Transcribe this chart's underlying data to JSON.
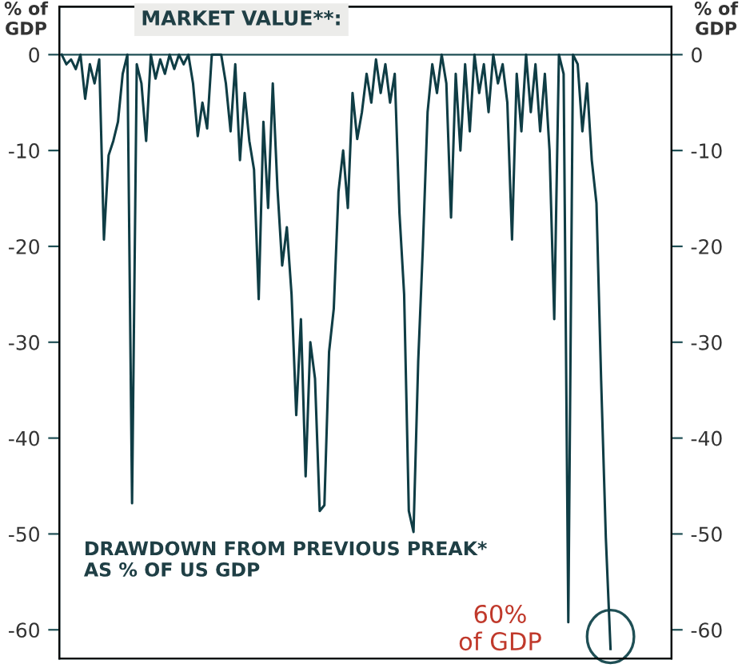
{
  "chart_data": {
    "type": "line",
    "ylabel": "% of GDP",
    "y2label": "% of GDP",
    "annotations": [
      "MARKET VALUE**:",
      "DRAWDOWN FROM PREVIOUS PREAK*\nAS % OF US GDP",
      "60%\nof GDP"
    ],
    "categories": [
      null,
      null,
      null,
      null,
      null,
      null,
      null,
      null,
      null,
      null,
      null,
      null,
      null,
      null,
      null,
      null,
      null,
      null,
      null,
      null,
      null,
      null,
      null,
      null,
      null,
      null,
      null,
      null,
      null,
      null,
      null,
      null,
      null,
      null,
      null,
      null,
      null,
      null,
      null,
      null,
      null,
      null,
      null,
      null,
      null,
      null,
      null,
      null,
      null,
      null,
      null,
      null,
      null,
      null,
      null,
      null,
      null,
      null,
      null,
      null,
      null,
      null,
      null,
      null,
      null,
      null,
      null,
      null,
      null,
      null,
      null,
      null,
      null,
      null,
      null,
      null,
      null,
      null,
      null,
      null,
      null,
      null,
      null,
      null,
      null,
      null,
      null,
      null,
      null,
      null,
      null,
      null,
      null,
      null,
      null,
      null,
      null,
      null,
      null,
      null,
      null,
      null,
      null,
      null,
      null,
      null,
      null,
      null,
      null,
      null,
      null,
      null,
      null,
      null,
      null,
      null,
      null,
      null
    ],
    "series": [
      {
        "color": "#0f3d45",
        "values": [
          0,
          -1,
          -0.5,
          -1.5,
          0,
          -4.6,
          -1,
          -3,
          -0.5,
          -19.3,
          -10.5,
          -9,
          -7,
          -2,
          0,
          -46.8,
          -1,
          -3,
          -9,
          0,
          -2.5,
          -0.5,
          -2,
          0,
          -1.5,
          0,
          -1,
          0,
          -3,
          -8.5,
          -5,
          -7.7,
          0,
          0,
          0,
          -3,
          -8,
          -1,
          -11,
          -4,
          -9,
          -12,
          -25.5,
          -7,
          -16,
          -3,
          -14,
          -22,
          -18,
          -25,
          -37.6,
          -27.6,
          -44,
          -30,
          -33.8,
          -47.6,
          -47,
          -31,
          -26.5,
          -14.3,
          -10,
          -16,
          -4,
          -8.8,
          -6,
          -2,
          -5,
          -0.5,
          -4,
          -1,
          -5,
          -2,
          -16.5,
          -25,
          -47.6,
          -49.8,
          -32,
          -20,
          -6,
          -1,
          -4,
          0,
          -3,
          -17,
          -2,
          -10,
          -1,
          -8,
          0,
          -4,
          -1,
          -6,
          0,
          -3,
          -1,
          -5,
          -19.3,
          -2,
          -8,
          0,
          -6,
          -1,
          -8,
          -2,
          -10,
          -27.6,
          0,
          -2,
          -59.2,
          0,
          -1,
          -8,
          -3,
          -11,
          -15.5,
          -34,
          -50.4,
          -62
        ]
      }
    ],
    "ylim": [
      -63,
      5
    ],
    "yticks": [
      0,
      -10,
      -20,
      -30,
      -40,
      -50,
      -60
    ],
    "y2lim": [
      -63,
      5
    ],
    "y2ticks": [
      0,
      -10,
      -20,
      -30,
      -40,
      -50,
      -60
    ],
    "tick_labels": "y",
    "grid": false,
    "legend": false
  }
}
